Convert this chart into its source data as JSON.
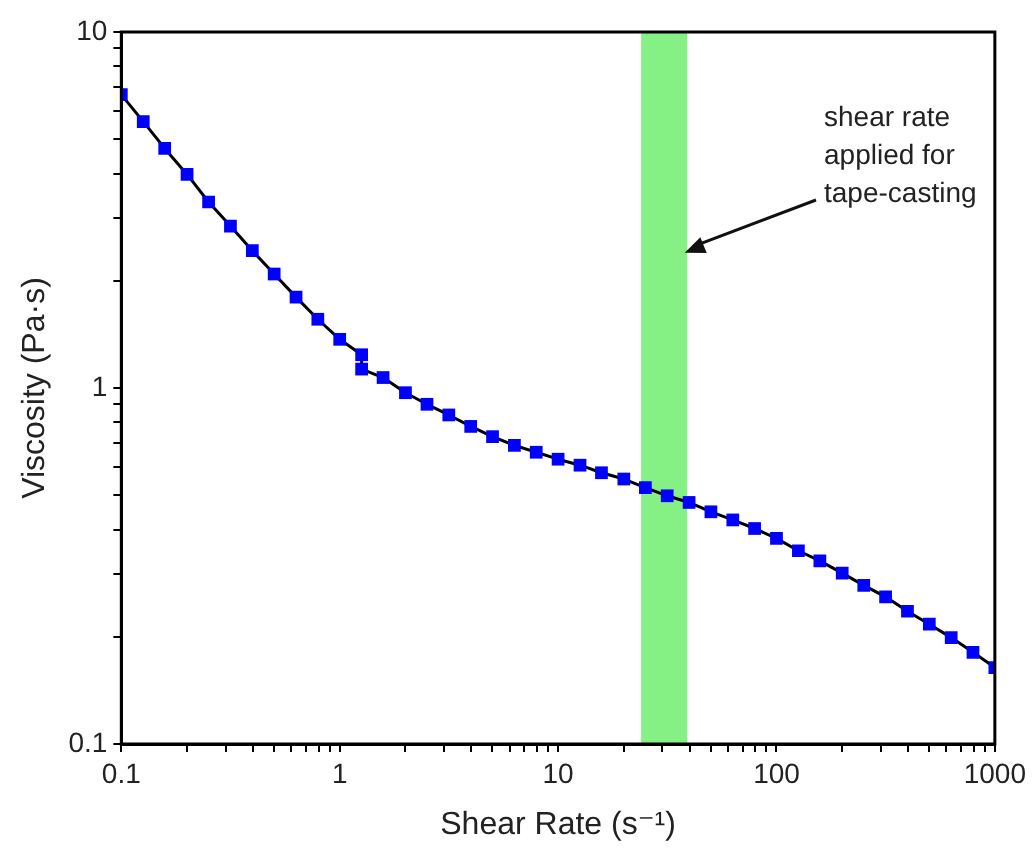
{
  "chart_data": {
    "type": "line",
    "xlabel": "Shear Rate (s⁻¹)",
    "ylabel": "Viscosity (Pa·s)",
    "log": "xy",
    "xlim": [
      0.1,
      1000
    ],
    "ylim": [
      0.1,
      10
    ],
    "xticks": [
      0.1,
      {
        "value": 0.2,
        "label": null
      },
      {
        "value": 0.3,
        "label": null
      },
      {
        "value": 0.4,
        "label": null
      },
      {
        "value": 0.5,
        "label": null
      },
      {
        "value": 0.6,
        "label": null
      },
      {
        "value": 0.7,
        "label": null
      },
      {
        "value": 0.8,
        "label": null
      },
      {
        "value": 0.9,
        "label": null
      },
      1,
      {
        "value": 2,
        "label": null
      },
      {
        "value": 3,
        "label": null
      },
      {
        "value": 4,
        "label": null
      },
      {
        "value": 5,
        "label": null
      },
      {
        "value": 6,
        "label": null
      },
      {
        "value": 7,
        "label": null
      },
      {
        "value": 8,
        "label": null
      },
      {
        "value": 9,
        "label": null
      },
      10,
      {
        "value": 20,
        "label": null
      },
      {
        "value": 30,
        "label": null
      },
      {
        "value": 40,
        "label": null
      },
      {
        "value": 50,
        "label": null
      },
      {
        "value": 60,
        "label": null
      },
      {
        "value": 70,
        "label": null
      },
      {
        "value": 80,
        "label": null
      },
      {
        "value": 90,
        "label": null
      },
      100,
      {
        "value": 200,
        "label": null
      },
      {
        "value": 300,
        "label": null
      },
      {
        "value": 400,
        "label": null
      },
      {
        "value": 500,
        "label": null
      },
      {
        "value": 600,
        "label": null
      },
      {
        "value": 700,
        "label": null
      },
      {
        "value": 800,
        "label": null
      },
      {
        "value": 900,
        "label": null
      },
      1000
    ],
    "yticks": [
      0.1,
      {
        "value": 0.2,
        "label": null
      },
      {
        "value": 0.3,
        "label": null
      },
      {
        "value": 0.4,
        "label": null
      },
      {
        "value": 0.5,
        "label": null
      },
      {
        "value": 0.6,
        "label": null
      },
      {
        "value": 0.7,
        "label": null
      },
      {
        "value": 0.8,
        "label": null
      },
      {
        "value": 0.9,
        "label": null
      },
      1,
      {
        "value": 2,
        "label": null
      },
      {
        "value": 3,
        "label": null
      },
      {
        "value": 4,
        "label": null
      },
      {
        "value": 5,
        "label": null
      },
      {
        "value": 6,
        "label": null
      },
      {
        "value": 7,
        "label": null
      },
      {
        "value": 8,
        "label": null
      },
      {
        "value": 9,
        "label": null
      },
      10
    ],
    "x": [
      0.1,
      0.126,
      0.158,
      0.2,
      0.251,
      0.316,
      0.398,
      0.501,
      0.631,
      0.794,
      1,
      1.26,
      1.26,
      1.58,
      2,
      2.51,
      3.16,
      3.98,
      5.01,
      6.31,
      7.94,
      10,
      12.6,
      15.8,
      20,
      25.1,
      31.6,
      39.8,
      50.1,
      63.1,
      79.4,
      100,
      126,
      158,
      200,
      251,
      316,
      398,
      501,
      631,
      794,
      1000
    ],
    "series": [
      {
        "type": "line",
        "color": "#000000",
        "marker": "none",
        "values": [
          6.67,
          5.6,
          4.71,
          3.98,
          3.33,
          2.85,
          2.43,
          2.09,
          1.8,
          1.56,
          1.37,
          1.24,
          1.13,
          1.07,
          0.97,
          0.9,
          0.84,
          0.78,
          0.73,
          0.69,
          0.66,
          0.631,
          0.607,
          0.578,
          0.555,
          0.525,
          0.498,
          0.477,
          0.449,
          0.426,
          0.403,
          0.378,
          0.349,
          0.327,
          0.302,
          0.279,
          0.259,
          0.236,
          0.217,
          0.199,
          0.181,
          0.164
        ]
      },
      {
        "type": "scatter",
        "color": "#0000ff",
        "marker": "square",
        "values": [
          6.67,
          5.6,
          4.71,
          3.98,
          3.33,
          2.85,
          2.43,
          2.09,
          1.8,
          1.56,
          1.37,
          1.24,
          1.13,
          1.07,
          0.97,
          0.9,
          0.84,
          0.78,
          0.73,
          0.69,
          0.66,
          0.631,
          0.607,
          0.578,
          0.555,
          0.525,
          0.498,
          0.477,
          0.449,
          0.426,
          0.403,
          0.378,
          0.349,
          0.327,
          0.302,
          0.279,
          0.259,
          0.236,
          0.217,
          0.199,
          0.181,
          0.164
        ]
      }
    ],
    "bands": [
      {
        "axis": "x",
        "from": 24,
        "to": 39,
        "color": "#66ee66"
      }
    ],
    "annotations": [
      {
        "text": "shear rate applied for tape-casting",
        "x": 38,
        "y": 2.4
      }
    ],
    "grid": false,
    "legend": false
  }
}
